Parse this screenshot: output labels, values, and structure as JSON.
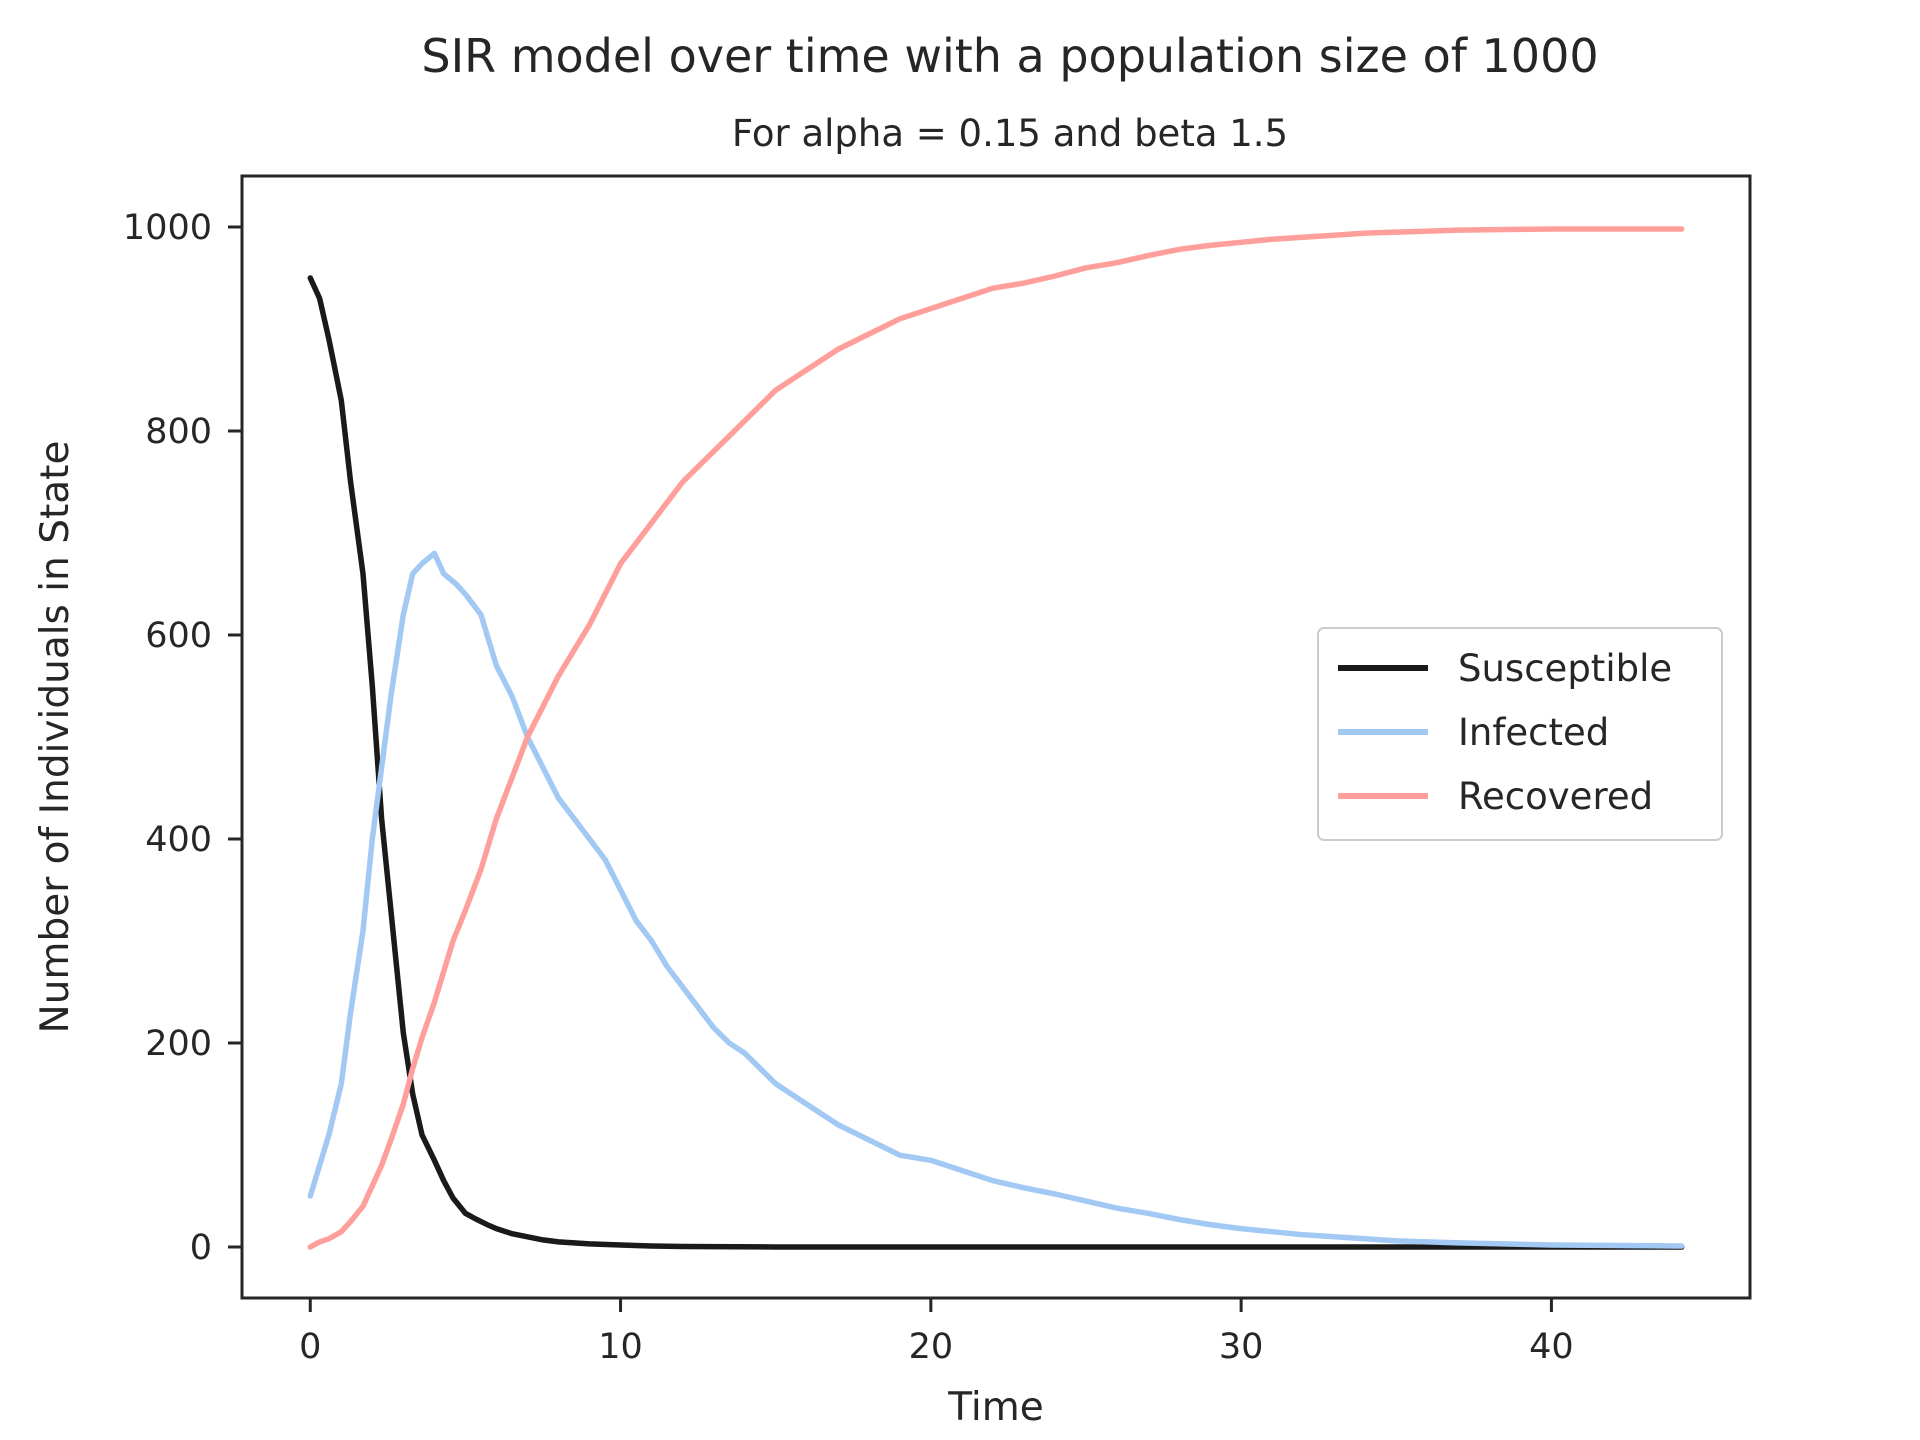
{
  "chart_data": {
    "type": "line",
    "title": "SIR model over time with a population size of 1000",
    "subtitle": "For alpha = 0.15 and beta 1.5",
    "xlabel": "Time",
    "ylabel": "Number of Individuals in State",
    "xlim": [
      -2.2,
      46.4
    ],
    "ylim": [
      -50,
      1050
    ],
    "xticks": [
      0,
      10,
      20,
      30,
      40
    ],
    "yticks": [
      0,
      200,
      400,
      600,
      800,
      1000
    ],
    "grid": false,
    "legend_position": "center-right",
    "series": [
      {
        "name": "Susceptible",
        "color": "#1a1a1a",
        "x": [
          0,
          0.3,
          0.6,
          1.0,
          1.3,
          1.7,
          2.0,
          2.3,
          2.6,
          3.0,
          3.3,
          3.6,
          4.0,
          4.3,
          4.6,
          5.0,
          5.3,
          5.7,
          6.0,
          6.5,
          7.0,
          7.5,
          8.0,
          9.0,
          10.0,
          11.0,
          12.0,
          15.0,
          20.0,
          30.0,
          40.0,
          44.2
        ],
        "y": [
          950,
          930,
          890,
          830,
          750,
          660,
          550,
          420,
          330,
          210,
          150,
          110,
          85,
          65,
          48,
          33,
          28,
          22,
          18,
          13,
          10,
          7,
          5,
          3,
          2,
          1,
          0.5,
          0,
          0,
          0,
          0,
          0
        ]
      },
      {
        "name": "Infected",
        "color": "#a1c9f4",
        "x": [
          0,
          0.3,
          0.6,
          1.0,
          1.3,
          1.7,
          2.0,
          2.3,
          2.6,
          3.0,
          3.3,
          3.6,
          4.0,
          4.3,
          4.7,
          5.0,
          5.5,
          6.0,
          6.5,
          7.0,
          7.5,
          8.0,
          8.5,
          9.0,
          9.5,
          10.0,
          10.5,
          11.0,
          11.5,
          12.0,
          12.5,
          13.0,
          13.5,
          14.0,
          14.5,
          15.0,
          16.0,
          17.0,
          18.0,
          19.0,
          20.0,
          21.0,
          22.0,
          23.0,
          24.0,
          25.0,
          26.0,
          27.0,
          28.0,
          29.0,
          30.0,
          31.0,
          32.0,
          33.0,
          34.0,
          35.0,
          37.0,
          40.0,
          44.2
        ],
        "y": [
          50,
          80,
          110,
          160,
          230,
          310,
          400,
          470,
          540,
          620,
          660,
          670,
          680,
          660,
          650,
          640,
          620,
          570,
          540,
          500,
          470,
          440,
          420,
          400,
          380,
          350,
          320,
          300,
          275,
          255,
          235,
          215,
          200,
          190,
          175,
          160,
          140,
          120,
          105,
          90,
          85,
          75,
          65,
          58,
          52,
          45,
          38,
          33,
          27,
          22,
          18,
          15,
          12,
          10,
          8,
          6,
          4,
          2,
          1
        ]
      },
      {
        "name": "Recovered",
        "color": "#ff9f9b",
        "x": [
          0,
          0.3,
          0.6,
          1.0,
          1.3,
          1.7,
          2.0,
          2.3,
          2.6,
          3.0,
          3.3,
          3.6,
          4.0,
          4.3,
          4.6,
          5.0,
          5.5,
          6.0,
          6.5,
          7.0,
          7.5,
          8.0,
          8.5,
          9.0,
          9.5,
          10.0,
          10.5,
          11.0,
          11.5,
          12.0,
          12.5,
          13.0,
          13.5,
          14.0,
          15.0,
          16.0,
          17.0,
          18.0,
          19.0,
          20.0,
          21.0,
          22.0,
          23.0,
          24.0,
          25.0,
          26.0,
          27.0,
          28.0,
          29.0,
          30.0,
          31.0,
          32.0,
          33.0,
          34.0,
          35.0,
          37.0,
          40.0,
          44.2
        ],
        "y": [
          0,
          5,
          8,
          15,
          25,
          40,
          60,
          80,
          105,
          140,
          175,
          205,
          240,
          270,
          300,
          330,
          370,
          420,
          460,
          500,
          530,
          560,
          585,
          610,
          640,
          670,
          690,
          710,
          730,
          750,
          765,
          780,
          795,
          810,
          840,
          860,
          880,
          895,
          910,
          920,
          930,
          940,
          945,
          952,
          960,
          965,
          972,
          978,
          982,
          985,
          988,
          990,
          992,
          994,
          995,
          997,
          998,
          998
        ]
      }
    ]
  }
}
